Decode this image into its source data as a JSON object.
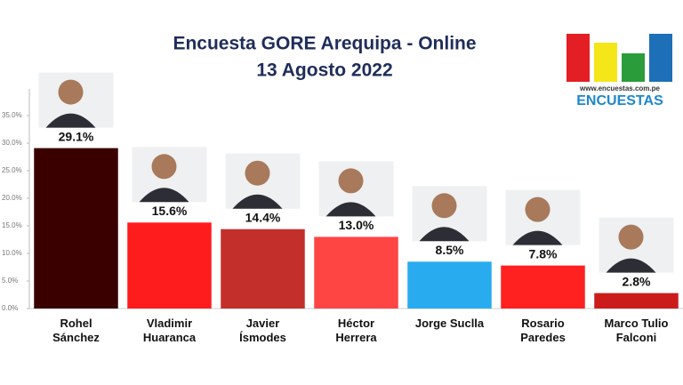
{
  "chart_data": {
    "type": "bar",
    "title": "Encuesta GORE Arequipa - Online",
    "subtitle": "13 Agosto 2022",
    "categories": [
      "Rohel Sánchez",
      "Vladimir Huaranca",
      "Javier Ísmodes",
      "Héctor Herrera",
      "Jorge Suclla",
      "Rosario Paredes",
      "Marco Tulio Falconi"
    ],
    "values": [
      29.1,
      15.6,
      14.4,
      13.0,
      8.5,
      7.8,
      2.8
    ],
    "value_labels": [
      "29.1%",
      "15.6%",
      "14.4%",
      "13.0%",
      "8.5%",
      "7.8%",
      "2.8%"
    ],
    "colors": [
      "#3a0000",
      "#ff1c1c",
      "#c3302b",
      "#ff4444",
      "#29acef",
      "#ff2020",
      "#cc1b1b"
    ],
    "ylim": [
      0,
      35
    ],
    "yticks": [
      {
        "value": 0,
        "label": "0.0%"
      },
      {
        "value": 5,
        "label": "5.0%"
      },
      {
        "value": 10,
        "label": "10.0%"
      },
      {
        "value": 15,
        "label": "15.0%"
      },
      {
        "value": 20,
        "label": "20.0%"
      },
      {
        "value": 25,
        "label": "25.0%"
      },
      {
        "value": 30,
        "label": "30.0%"
      },
      {
        "value": 35,
        "label": "35.0%"
      }
    ]
  },
  "logo": {
    "url": "www.encuestas.com.pe",
    "name": "ENCUESTAS"
  }
}
